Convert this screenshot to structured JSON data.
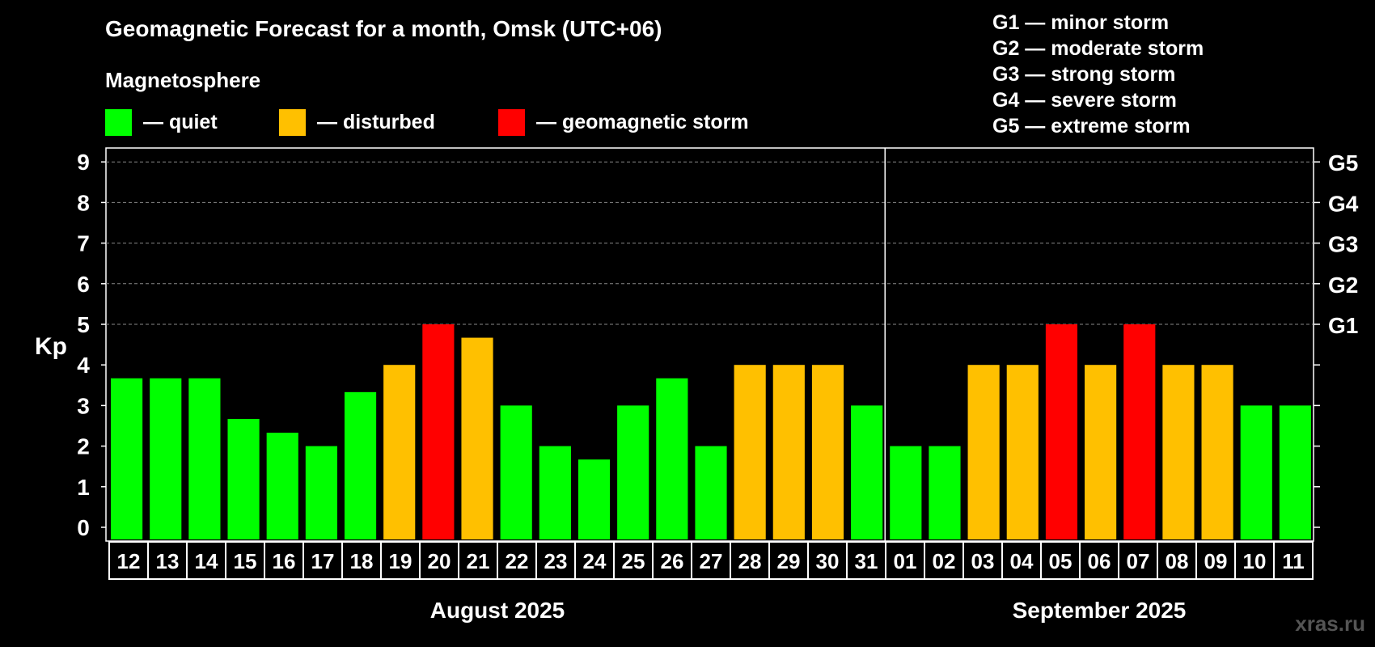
{
  "chart_data": {
    "type": "bar",
    "title": "Geomagnetic Forecast for a month, Omsk (UTC+06)",
    "ylabel": "Kp",
    "ylim": [
      0,
      9
    ],
    "yticks": [
      "0",
      "1",
      "2",
      "3",
      "4",
      "5",
      "6",
      "7",
      "8",
      "9"
    ],
    "right_axis_labels": [
      {
        "kp": 5,
        "label": "G1"
      },
      {
        "kp": 6,
        "label": "G2"
      },
      {
        "kp": 7,
        "label": "G3"
      },
      {
        "kp": 8,
        "label": "G4"
      },
      {
        "kp": 9,
        "label": "G5"
      }
    ],
    "categories": [
      "12",
      "13",
      "14",
      "15",
      "16",
      "17",
      "18",
      "19",
      "20",
      "21",
      "22",
      "23",
      "24",
      "25",
      "26",
      "27",
      "28",
      "29",
      "30",
      "31",
      "01",
      "02",
      "03",
      "04",
      "05",
      "06",
      "07",
      "08",
      "09",
      "10",
      "11"
    ],
    "values": [
      3.67,
      3.67,
      3.67,
      2.67,
      2.33,
      2.0,
      3.33,
      4.0,
      5.0,
      4.67,
      3.0,
      2.0,
      1.67,
      3.0,
      3.67,
      2.0,
      4.0,
      4.0,
      4.0,
      3.0,
      2.0,
      2.0,
      4.0,
      4.0,
      5.0,
      4.0,
      5.0,
      4.0,
      4.0,
      3.0,
      3.0
    ],
    "levels": [
      "quiet",
      "quiet",
      "quiet",
      "quiet",
      "quiet",
      "quiet",
      "quiet",
      "disturbed",
      "storm",
      "disturbed",
      "quiet",
      "quiet",
      "quiet",
      "quiet",
      "quiet",
      "quiet",
      "disturbed",
      "disturbed",
      "disturbed",
      "quiet",
      "quiet",
      "quiet",
      "disturbed",
      "disturbed",
      "storm",
      "disturbed",
      "storm",
      "disturbed",
      "disturbed",
      "quiet",
      "quiet"
    ],
    "months": [
      {
        "label": "August 2025",
        "count": 20
      },
      {
        "label": "September 2025",
        "count": 11
      }
    ],
    "colors": {
      "quiet": "#00ff00",
      "disturbed": "#ffc000",
      "storm": "#ff0000"
    }
  },
  "legend": {
    "title": "Magnetosphere",
    "items": [
      {
        "key": "quiet",
        "label": "— quiet"
      },
      {
        "key": "disturbed",
        "label": "— disturbed"
      },
      {
        "key": "storm",
        "label": "— geomagnetic storm"
      }
    ]
  },
  "storm_scale": [
    "G1 — minor storm",
    "G2 — moderate storm",
    "G3 — strong storm",
    "G4 — severe storm",
    "G5 — extreme storm"
  ],
  "watermark": "xras.ru"
}
